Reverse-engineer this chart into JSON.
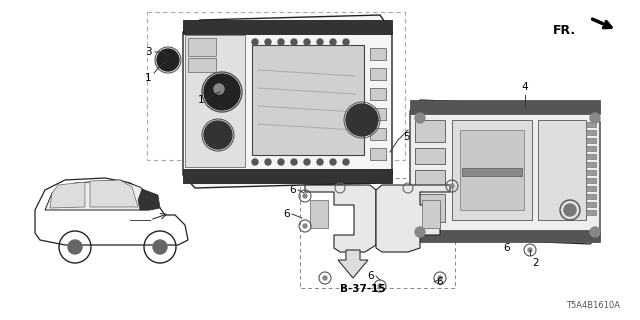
{
  "background_color": "#ffffff",
  "diagram_code": "T5A4B1610A",
  "direction_label": "FR.",
  "reference_label": "B-37-15",
  "line_color": "#222222",
  "text_color": "#000000",
  "light_gray": "#cccccc",
  "mid_gray": "#888888",
  "dark_gray": "#444444"
}
